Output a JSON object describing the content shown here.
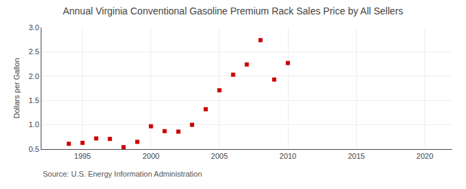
{
  "chart_data": {
    "type": "scatter",
    "title": "Annual Virginia Conventional Gasoline Premium Rack Sales Price by All Sellers",
    "ylabel": "Dollars per Gallon",
    "annotations": [
      "Source: U.S. Energy Information Administration"
    ],
    "x": [
      1994,
      1995,
      1996,
      1997,
      1998,
      1999,
      2000,
      2001,
      2002,
      2003,
      2004,
      2005,
      2006,
      2007,
      2008,
      2009,
      2010
    ],
    "values": [
      0.61,
      0.63,
      0.72,
      0.71,
      0.54,
      0.65,
      0.97,
      0.87,
      0.86,
      1.0,
      1.32,
      1.71,
      2.03,
      2.24,
      2.74,
      1.93,
      2.27
    ],
    "color": "#cc0000",
    "marker": "square",
    "xlim": [
      1992,
      2022
    ],
    "xticks": [
      1995,
      2000,
      2005,
      2010,
      2015,
      2020
    ],
    "ylim": [
      0.5,
      3.0
    ],
    "yticks": [
      0.5,
      {
        "value": 1.0,
        "label": "1.0"
      },
      1.5,
      {
        "value": 2.0,
        "label": "2.0"
      },
      2.5,
      {
        "value": 3.0,
        "label": "3.0"
      }
    ],
    "grid": true
  }
}
